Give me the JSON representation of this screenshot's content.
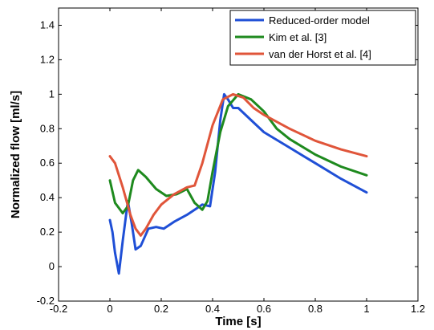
{
  "chart_data": {
    "type": "line",
    "xlabel": "Time [s]",
    "ylabel": "Normalized flow [ml/s]",
    "xlim": [
      -0.2,
      1.2
    ],
    "ylim": [
      -0.2,
      1.5
    ],
    "xticks": [
      "-0.2",
      "0",
      "0.2",
      "0.4",
      "0.6",
      "0.8",
      "1",
      "1.2"
    ],
    "xtick_values": [
      -0.2,
      0,
      0.2,
      0.4,
      0.6,
      0.8,
      1,
      1.2
    ],
    "yticks": [
      "-0.2",
      "0",
      "0.2",
      "0.4",
      "0.6",
      "0.8",
      "1",
      "1.2",
      "1.4"
    ],
    "ytick_values": [
      -0.2,
      0,
      0.2,
      0.4,
      0.6,
      0.8,
      1,
      1.2,
      1.4
    ],
    "grid": false,
    "legend_position": "top-right",
    "series": [
      {
        "name": "Reduced-order model",
        "color": "#1f4fd6",
        "x": [
          0,
          0.01,
          0.02,
          0.035,
          0.05,
          0.07,
          0.085,
          0.1,
          0.12,
          0.15,
          0.18,
          0.21,
          0.25,
          0.3,
          0.34,
          0.36,
          0.39,
          0.41,
          0.43,
          0.445,
          0.46,
          0.48,
          0.5,
          0.55,
          0.6,
          0.7,
          0.8,
          0.9,
          1.0
        ],
        "y": [
          0.27,
          0.2,
          0.08,
          -0.04,
          0.15,
          0.38,
          0.25,
          0.1,
          0.12,
          0.22,
          0.23,
          0.22,
          0.26,
          0.3,
          0.34,
          0.36,
          0.35,
          0.55,
          0.85,
          1.0,
          0.97,
          0.92,
          0.92,
          0.85,
          0.78,
          0.69,
          0.6,
          0.51,
          0.43
        ]
      },
      {
        "name": "Kim et al. [3]",
        "color": "#1e8a1e",
        "x": [
          0,
          0.02,
          0.05,
          0.07,
          0.09,
          0.11,
          0.14,
          0.18,
          0.22,
          0.26,
          0.3,
          0.33,
          0.36,
          0.38,
          0.4,
          0.43,
          0.46,
          0.5,
          0.55,
          0.6,
          0.65,
          0.7,
          0.8,
          0.9,
          1.0
        ],
        "y": [
          0.5,
          0.37,
          0.31,
          0.35,
          0.5,
          0.56,
          0.52,
          0.45,
          0.41,
          0.42,
          0.45,
          0.37,
          0.33,
          0.38,
          0.55,
          0.78,
          0.93,
          1.0,
          0.97,
          0.9,
          0.8,
          0.74,
          0.65,
          0.58,
          0.53
        ]
      },
      {
        "name": "van der Horst et al. [4]",
        "color": "#e0553a",
        "x": [
          0,
          0.02,
          0.05,
          0.08,
          0.1,
          0.12,
          0.14,
          0.17,
          0.2,
          0.25,
          0.3,
          0.33,
          0.36,
          0.4,
          0.44,
          0.48,
          0.52,
          0.56,
          0.6,
          0.7,
          0.8,
          0.9,
          1.0
        ],
        "y": [
          0.64,
          0.6,
          0.46,
          0.3,
          0.22,
          0.18,
          0.22,
          0.3,
          0.36,
          0.42,
          0.46,
          0.47,
          0.6,
          0.82,
          0.97,
          1.0,
          0.98,
          0.92,
          0.88,
          0.8,
          0.73,
          0.68,
          0.64
        ]
      }
    ]
  }
}
